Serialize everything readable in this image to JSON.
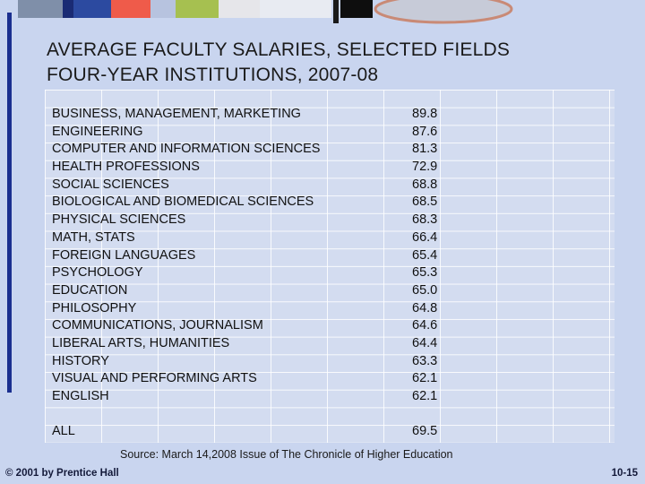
{
  "title_lines": [
    "AVERAGE FACULTY SALARIES, SELECTED FIELDS",
    "FOUR-YEAR INSTITUTIONS, 2007-08"
  ],
  "rows": [
    {
      "label": "BUSINESS, MANAGEMENT, MARKETING",
      "value": "89.8"
    },
    {
      "label": "ENGINEERING",
      "value": "87.6"
    },
    {
      "label": "COMPUTER AND INFORMATION SCIENCES",
      "value": "81.3"
    },
    {
      "label": "HEALTH PROFESSIONS",
      "value": "72.9"
    },
    {
      "label": "SOCIAL SCIENCES",
      "value": "68.8"
    },
    {
      "label": "BIOLOGICAL AND BIOMEDICAL SCIENCES",
      "value": "68.5"
    },
    {
      "label": "PHYSICAL SCIENCES",
      "value": "68.3"
    },
    {
      "label": "MATH, STATS",
      "value": "66.4"
    },
    {
      "label": "FOREIGN LANGUAGES",
      "value": "65.4"
    },
    {
      "label": "PSYCHOLOGY",
      "value": "65.3"
    },
    {
      "label": "EDUCATION",
      "value": "65.0"
    },
    {
      "label": "PHILOSOPHY",
      "value": "64.8"
    },
    {
      "label": "COMMUNICATIONS, JOURNALISM",
      "value": "64.6"
    },
    {
      "label": "LIBERAL ARTS, HUMANITIES",
      "value": "64.4"
    },
    {
      "label": "HISTORY",
      "value": "63.3"
    },
    {
      "label": "VISUAL AND PERFORMING ARTS",
      "value": "62.1"
    },
    {
      "label": "ENGLISH",
      "value": "62.1"
    }
  ],
  "total": {
    "label": "ALL",
    "value": "69.5"
  },
  "source": "Source: March 14,2008 Issue of The Chronicle of Higher Education",
  "copyright": "© 2001 by Prentice Hall",
  "page_number": "10-15",
  "colors": {
    "background": "#c9d5ef",
    "accent_line": "#1b2f8f",
    "text": "#111111"
  }
}
